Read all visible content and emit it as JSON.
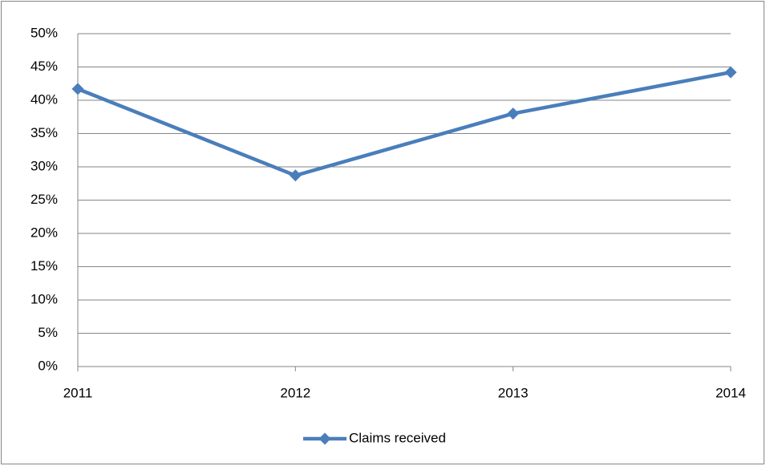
{
  "chart_data": {
    "type": "line",
    "categories": [
      "2011",
      "2012",
      "2013",
      "2014"
    ],
    "series": [
      {
        "name": "Claims received",
        "color": "#4a7ebb",
        "values": [
          41.7,
          28.7,
          38.0,
          44.2
        ]
      }
    ],
    "ylim": [
      0,
      50
    ],
    "yticks": [
      {
        "value": 0,
        "label": "0%"
      },
      {
        "value": 5,
        "label": "5%"
      },
      {
        "value": 10,
        "label": "10%"
      },
      {
        "value": 15,
        "label": "15%"
      },
      {
        "value": 20,
        "label": "20%"
      },
      {
        "value": 25,
        "label": "25%"
      },
      {
        "value": 30,
        "label": "30%"
      },
      {
        "value": 35,
        "label": "35%"
      },
      {
        "value": 40,
        "label": "40%"
      },
      {
        "value": 45,
        "label": "45%"
      },
      {
        "value": 50,
        "label": "50%"
      }
    ],
    "grid": true,
    "legend": "bottom"
  }
}
